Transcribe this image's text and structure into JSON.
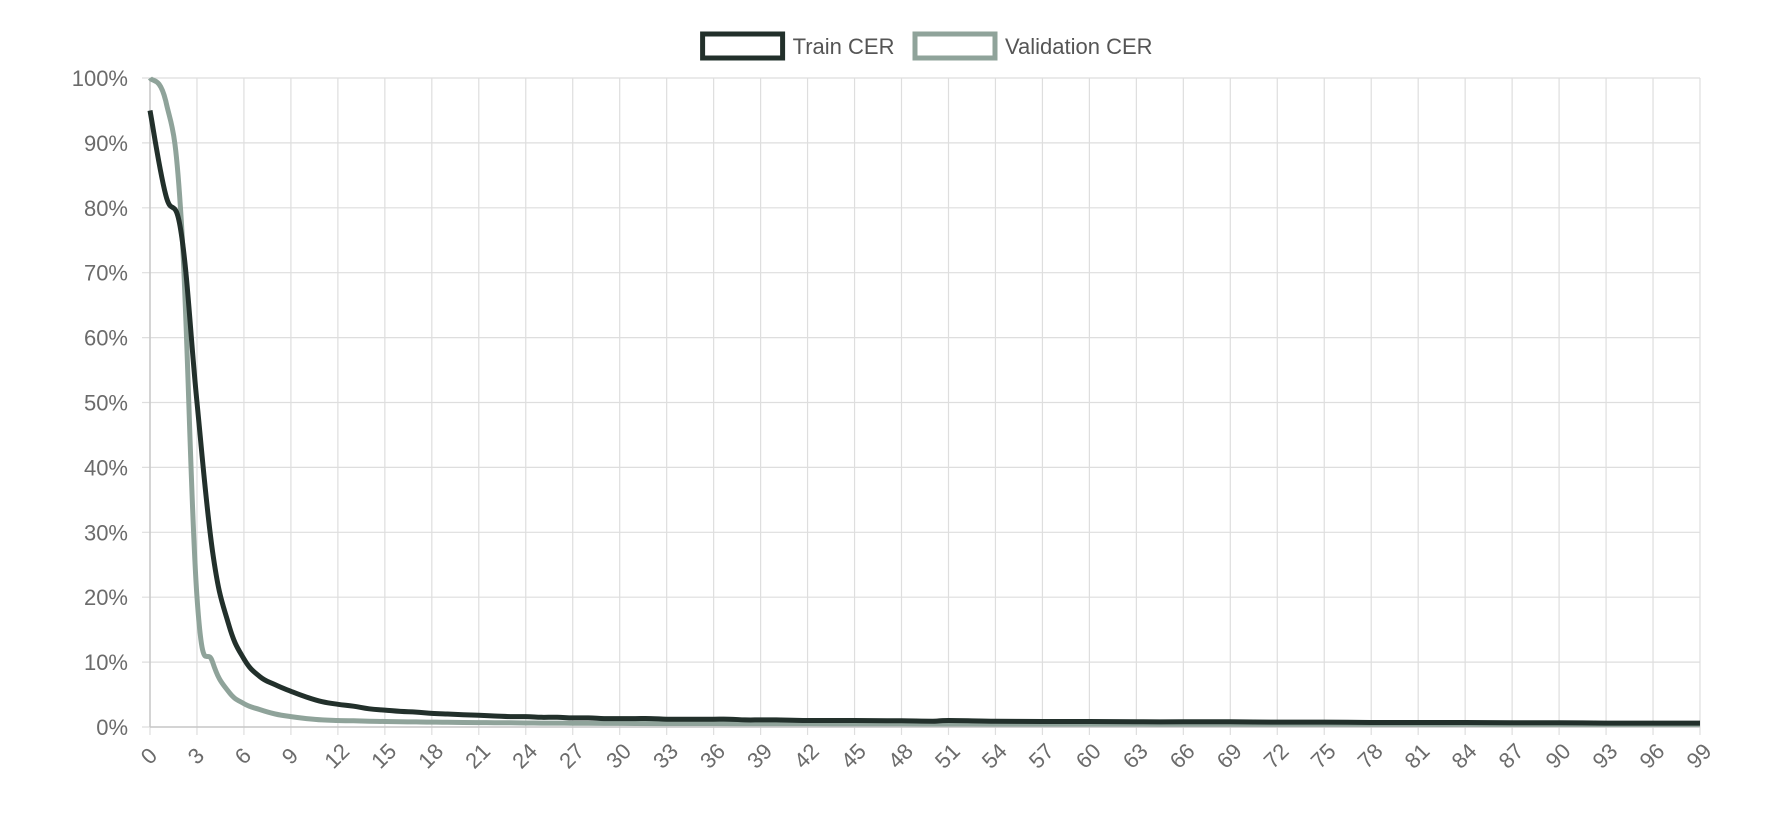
{
  "chart_data": {
    "type": "line",
    "title": "",
    "xlabel": "",
    "ylabel": "",
    "x_range": [
      0,
      99
    ],
    "x_tick_step": 3,
    "ylim": [
      0,
      100
    ],
    "y_tick_step": 10,
    "y_tick_suffix": "%",
    "grid": true,
    "legend_position": "top-center",
    "series": [
      {
        "name": "Train CER",
        "color": "#22302b",
        "x": [
          0,
          1,
          2,
          3,
          4,
          5,
          6,
          7,
          8,
          9,
          10,
          11,
          12,
          13,
          14,
          15,
          16,
          17,
          18,
          19,
          20,
          21,
          22,
          23,
          24,
          25,
          26,
          27,
          28,
          29,
          30,
          31,
          32,
          33,
          34,
          35,
          36,
          37,
          38,
          39,
          40,
          42,
          45,
          48,
          50,
          51,
          54,
          57,
          60,
          63,
          66,
          69,
          72,
          75,
          78,
          81,
          84,
          87,
          90,
          93,
          96,
          99
        ],
        "values": [
          95,
          82,
          76,
          50,
          27,
          16,
          10.5,
          7.8,
          6.5,
          5.5,
          4.6,
          3.9,
          3.5,
          3.2,
          2.8,
          2.6,
          2.4,
          2.3,
          2.1,
          2.0,
          1.9,
          1.8,
          1.7,
          1.6,
          1.6,
          1.5,
          1.5,
          1.4,
          1.4,
          1.3,
          1.3,
          1.3,
          1.3,
          1.2,
          1.2,
          1.2,
          1.2,
          1.2,
          1.1,
          1.1,
          1.1,
          1.0,
          1.0,
          0.95,
          0.9,
          1.0,
          0.9,
          0.85,
          0.85,
          0.8,
          0.8,
          0.8,
          0.75,
          0.75,
          0.7,
          0.7,
          0.7,
          0.65,
          0.65,
          0.6,
          0.6,
          0.6
        ]
      },
      {
        "name": "Validation CER",
        "color": "#8fa39a",
        "x": [
          0,
          1,
          2,
          3,
          4,
          5,
          6,
          7,
          8,
          9,
          10,
          11,
          12,
          13,
          14,
          15,
          16,
          17,
          18,
          19,
          20,
          21,
          22,
          23,
          24,
          25,
          26,
          27,
          28,
          29,
          30,
          33,
          36,
          39,
          42,
          45,
          48,
          51,
          54,
          57,
          60,
          63,
          66,
          69,
          72,
          75,
          78,
          81,
          84,
          87,
          90,
          93,
          96,
          99
        ],
        "values": [
          100,
          96.5,
          78,
          20,
          10,
          5.5,
          3.6,
          2.7,
          2.0,
          1.6,
          1.3,
          1.1,
          1.0,
          0.95,
          0.9,
          0.85,
          0.8,
          0.78,
          0.75,
          0.72,
          0.7,
          0.68,
          0.66,
          0.64,
          0.62,
          0.6,
          0.6,
          0.58,
          0.57,
          0.56,
          0.55,
          0.53,
          0.52,
          0.5,
          0.5,
          0.48,
          0.47,
          0.46,
          0.45,
          0.45,
          0.44,
          0.44,
          0.43,
          0.43,
          0.42,
          0.42,
          0.42,
          0.41,
          0.41,
          0.4,
          0.4,
          0.4,
          0.4,
          0.4
        ]
      }
    ]
  }
}
